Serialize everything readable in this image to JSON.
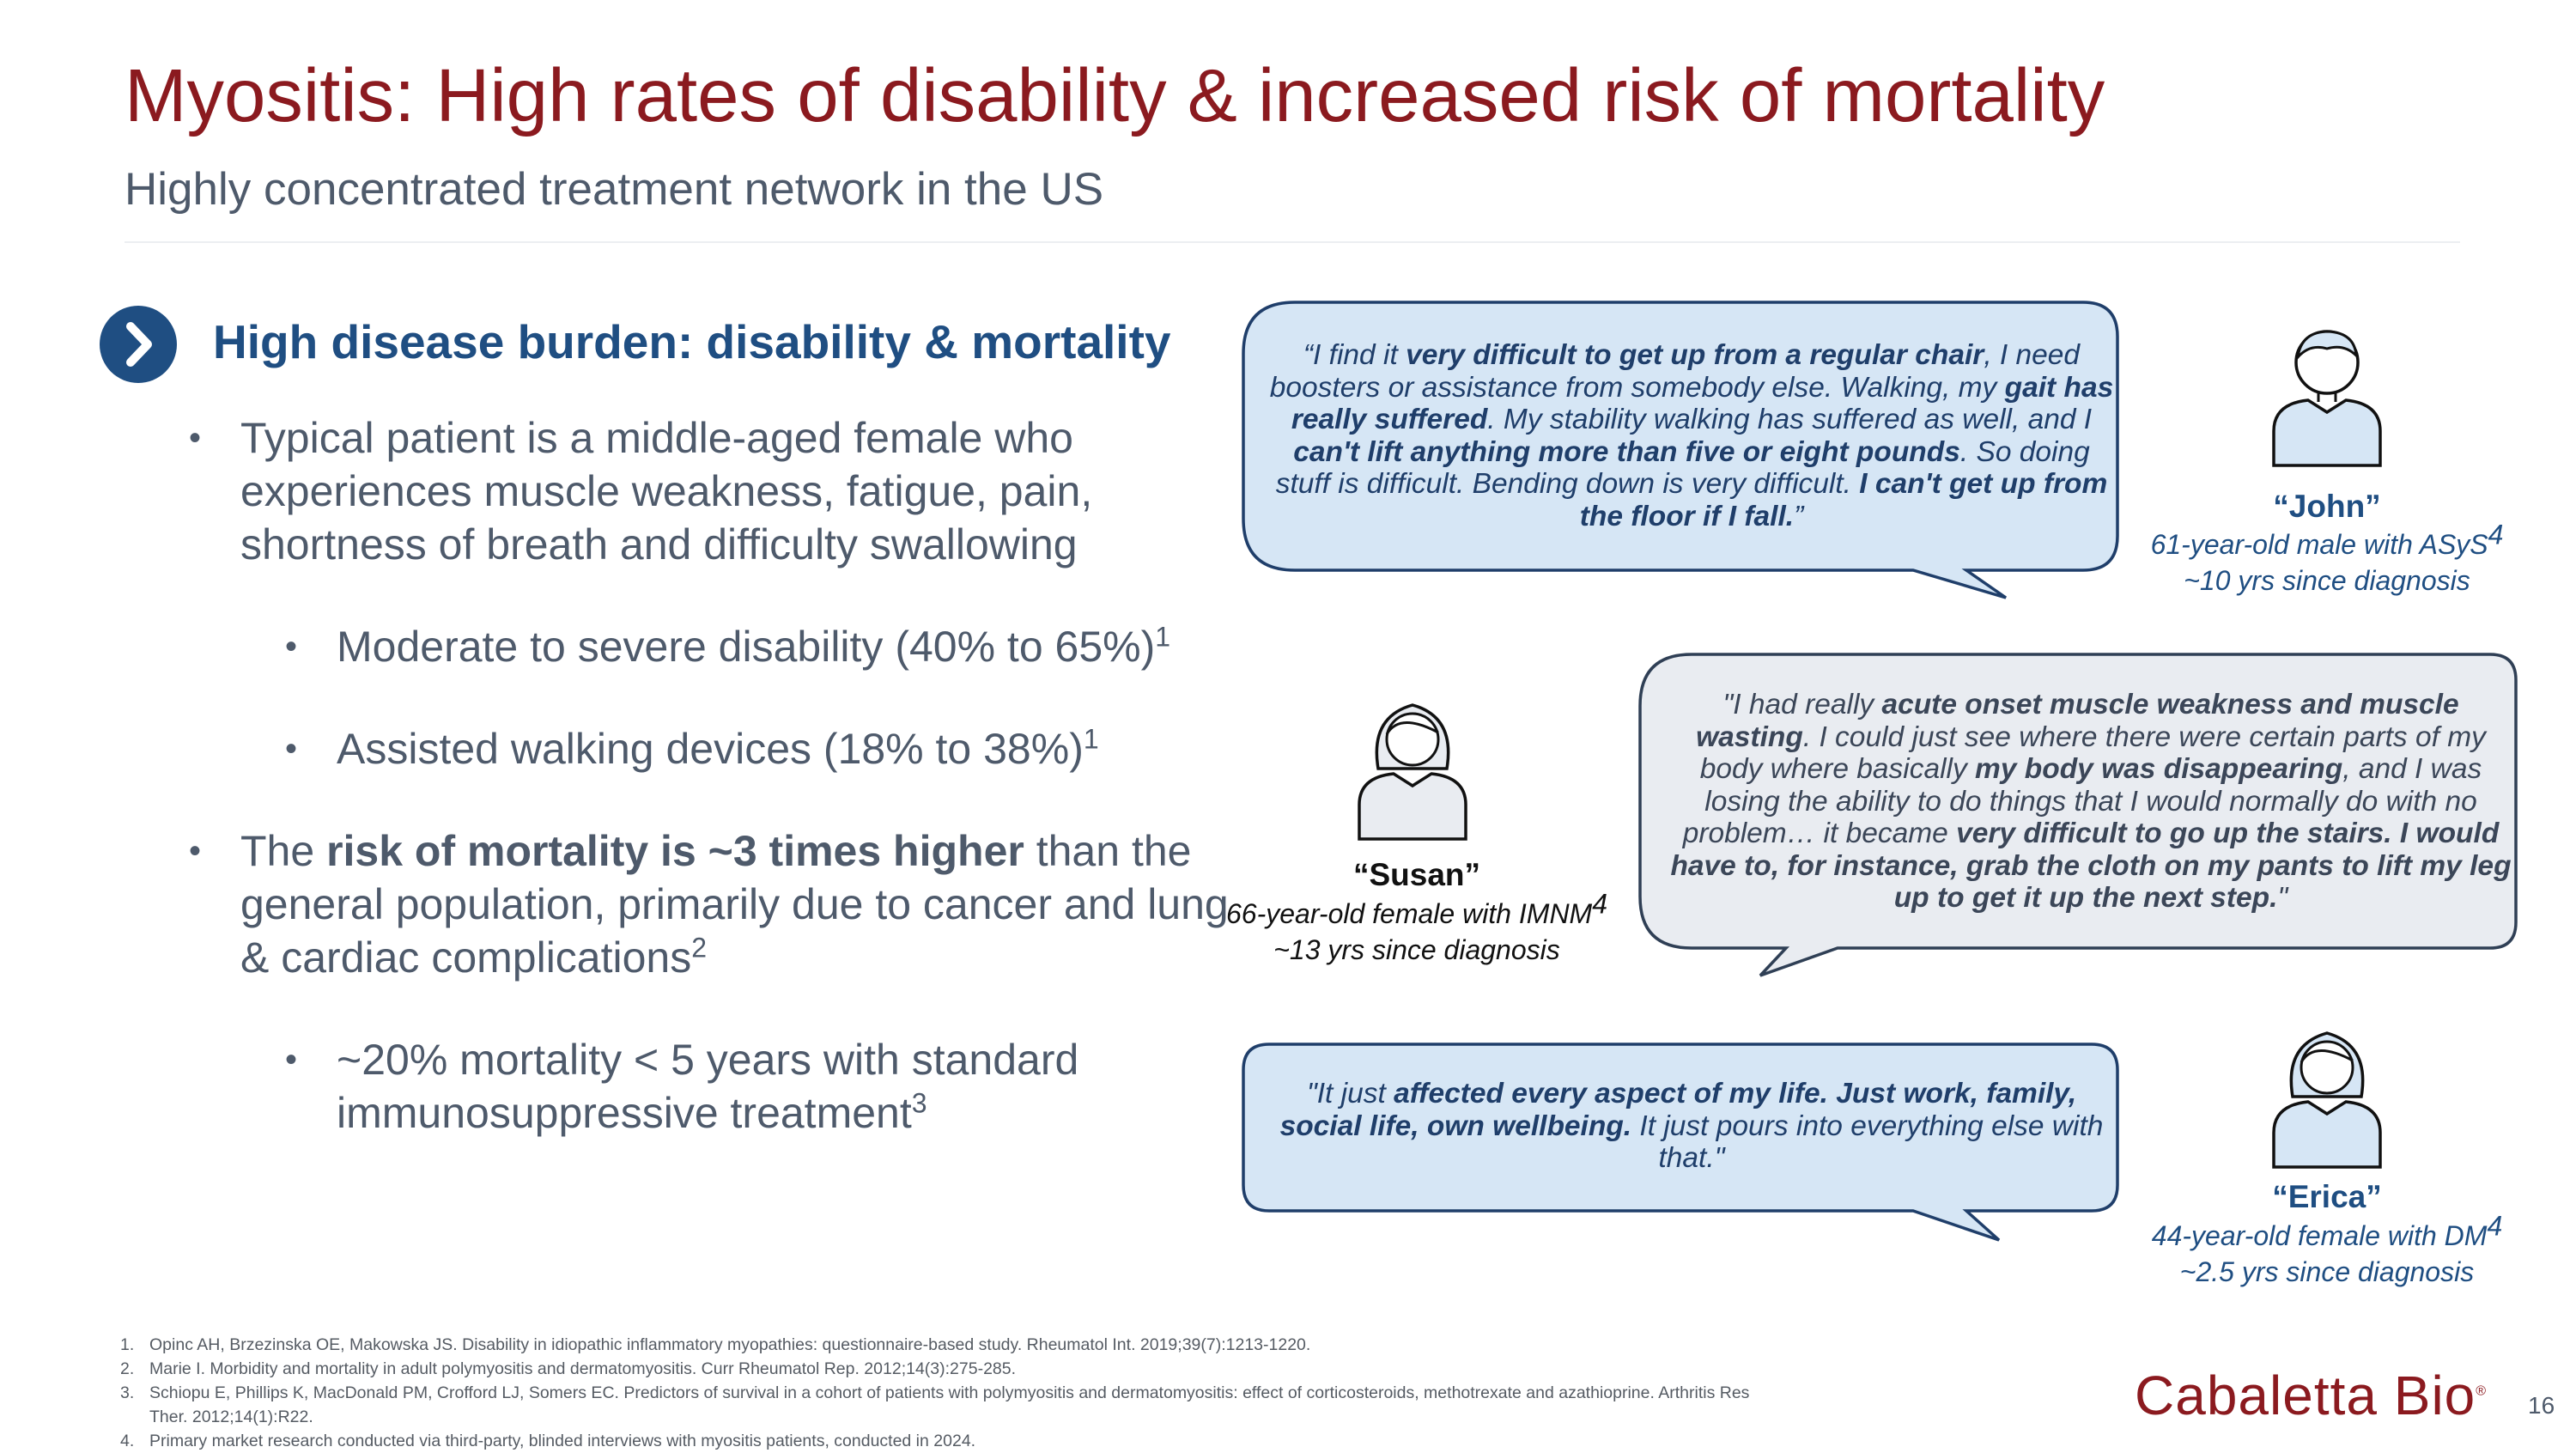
{
  "header": {
    "title": "Myositis: High rates of disability & increased risk of mortality",
    "subtitle": "Highly concentrated treatment network in the US"
  },
  "section": {
    "title": "High disease burden: disability & mortality"
  },
  "bullets": {
    "b1": "Typical patient is a middle-aged female who experiences muscle weakness, fatigue, pain, shortness of breath and difficulty swallowing",
    "b2_text": "Moderate to severe disability (40% to 65%)",
    "b2_ref": "1",
    "b3_text": "Assisted walking devices (18% to 38%)",
    "b3_ref": "1",
    "b4_pre": "The ",
    "b4_bold": "risk of mortality is ~3 times higher",
    "b4_post": " than the general population, primarily due to cancer and lung & cardiac complications",
    "b4_ref": "2",
    "b5_text": "~20% mortality < 5 years with standard immunosuppressive treatment",
    "b5_ref": "3",
    "marker": "•"
  },
  "quotes": {
    "john": {
      "s1": "“I find it ",
      "s2": "very difficult to get up from a regular chair",
      "s3": ", I need boosters or assistance from somebody else. Walking, my ",
      "s4": "gait has really suffered",
      "s5": ". My stability walking has suffered as well, and I ",
      "s6": "can't lift anything more than five or eight pounds",
      "s7": ". So doing stuff is difficult. Bending down is very difficult. ",
      "s8": "I can't get up from the floor if I fall.",
      "s9": "”"
    },
    "susan": {
      "s1": "\"I had really ",
      "s2": "acute onset muscle weakness and muscle wasting",
      "s3": ". I could just see where there were certain parts of my body where basically ",
      "s4": "my body was disappearing",
      "s5": ", and I was losing the ability to do things that I would normally do with no problem… it became ",
      "s6": "very difficult to go up the stairs. I would have to, for instance, grab the cloth on my pants to lift my leg up to get it up the next step.",
      "s7": "\""
    },
    "erica": {
      "s1": "\"It just ",
      "s2": "affected every aspect of my life. Just work, family, social life, own wellbeing.",
      "s3": " It just pours into everything else with that.\""
    }
  },
  "personas": {
    "john": {
      "name": "“John”",
      "desc": "61-year-old male with ASyS",
      "ref": "4",
      "since": "~10 yrs since diagnosis"
    },
    "susan": {
      "name": "“Susan”",
      "desc": "66-year-old female with IMNM",
      "ref": "4",
      "since": "~13 yrs since diagnosis"
    },
    "erica": {
      "name": "“Erica”",
      "desc": "44-year-old female with DM",
      "ref": "4",
      "since": "~2.5 yrs since diagnosis"
    }
  },
  "footnotes": [
    {
      "n": "1.",
      "text": "Opinc AH, Brzezinska OE, Makowska JS. Disability in idiopathic inflammatory myopathies: questionnaire-based study. Rheumatol Int. 2019;39(7):1213-1220."
    },
    {
      "n": "2.",
      "text": "Marie I. Morbidity and mortality in adult polymyositis and dermatomyositis. Curr Rheumatol Rep. 2012;14(3):275-285."
    },
    {
      "n": "3.",
      "text": "Schiopu E, Phillips K, MacDonald PM, Crofford LJ, Somers EC. Predictors of survival in a cohort of patients with polymyositis and dermatomyositis: effect of corticosteroids, methotrexate and azathioprine. Arthritis Res Ther. 2012;14(1):R22."
    },
    {
      "n": "4.",
      "text": "Primary market research conducted via third-party, blinded interviews with myositis patients, conducted in 2024."
    }
  ],
  "logo": {
    "text": "Cabaletta Bio",
    "mark": "®"
  },
  "page_number": "16",
  "colors": {
    "title": "#8b1a1f",
    "accent": "#1f4e82",
    "bubble_blue": "#d6e6f5",
    "bubble_gray": "#e9ecf1"
  }
}
